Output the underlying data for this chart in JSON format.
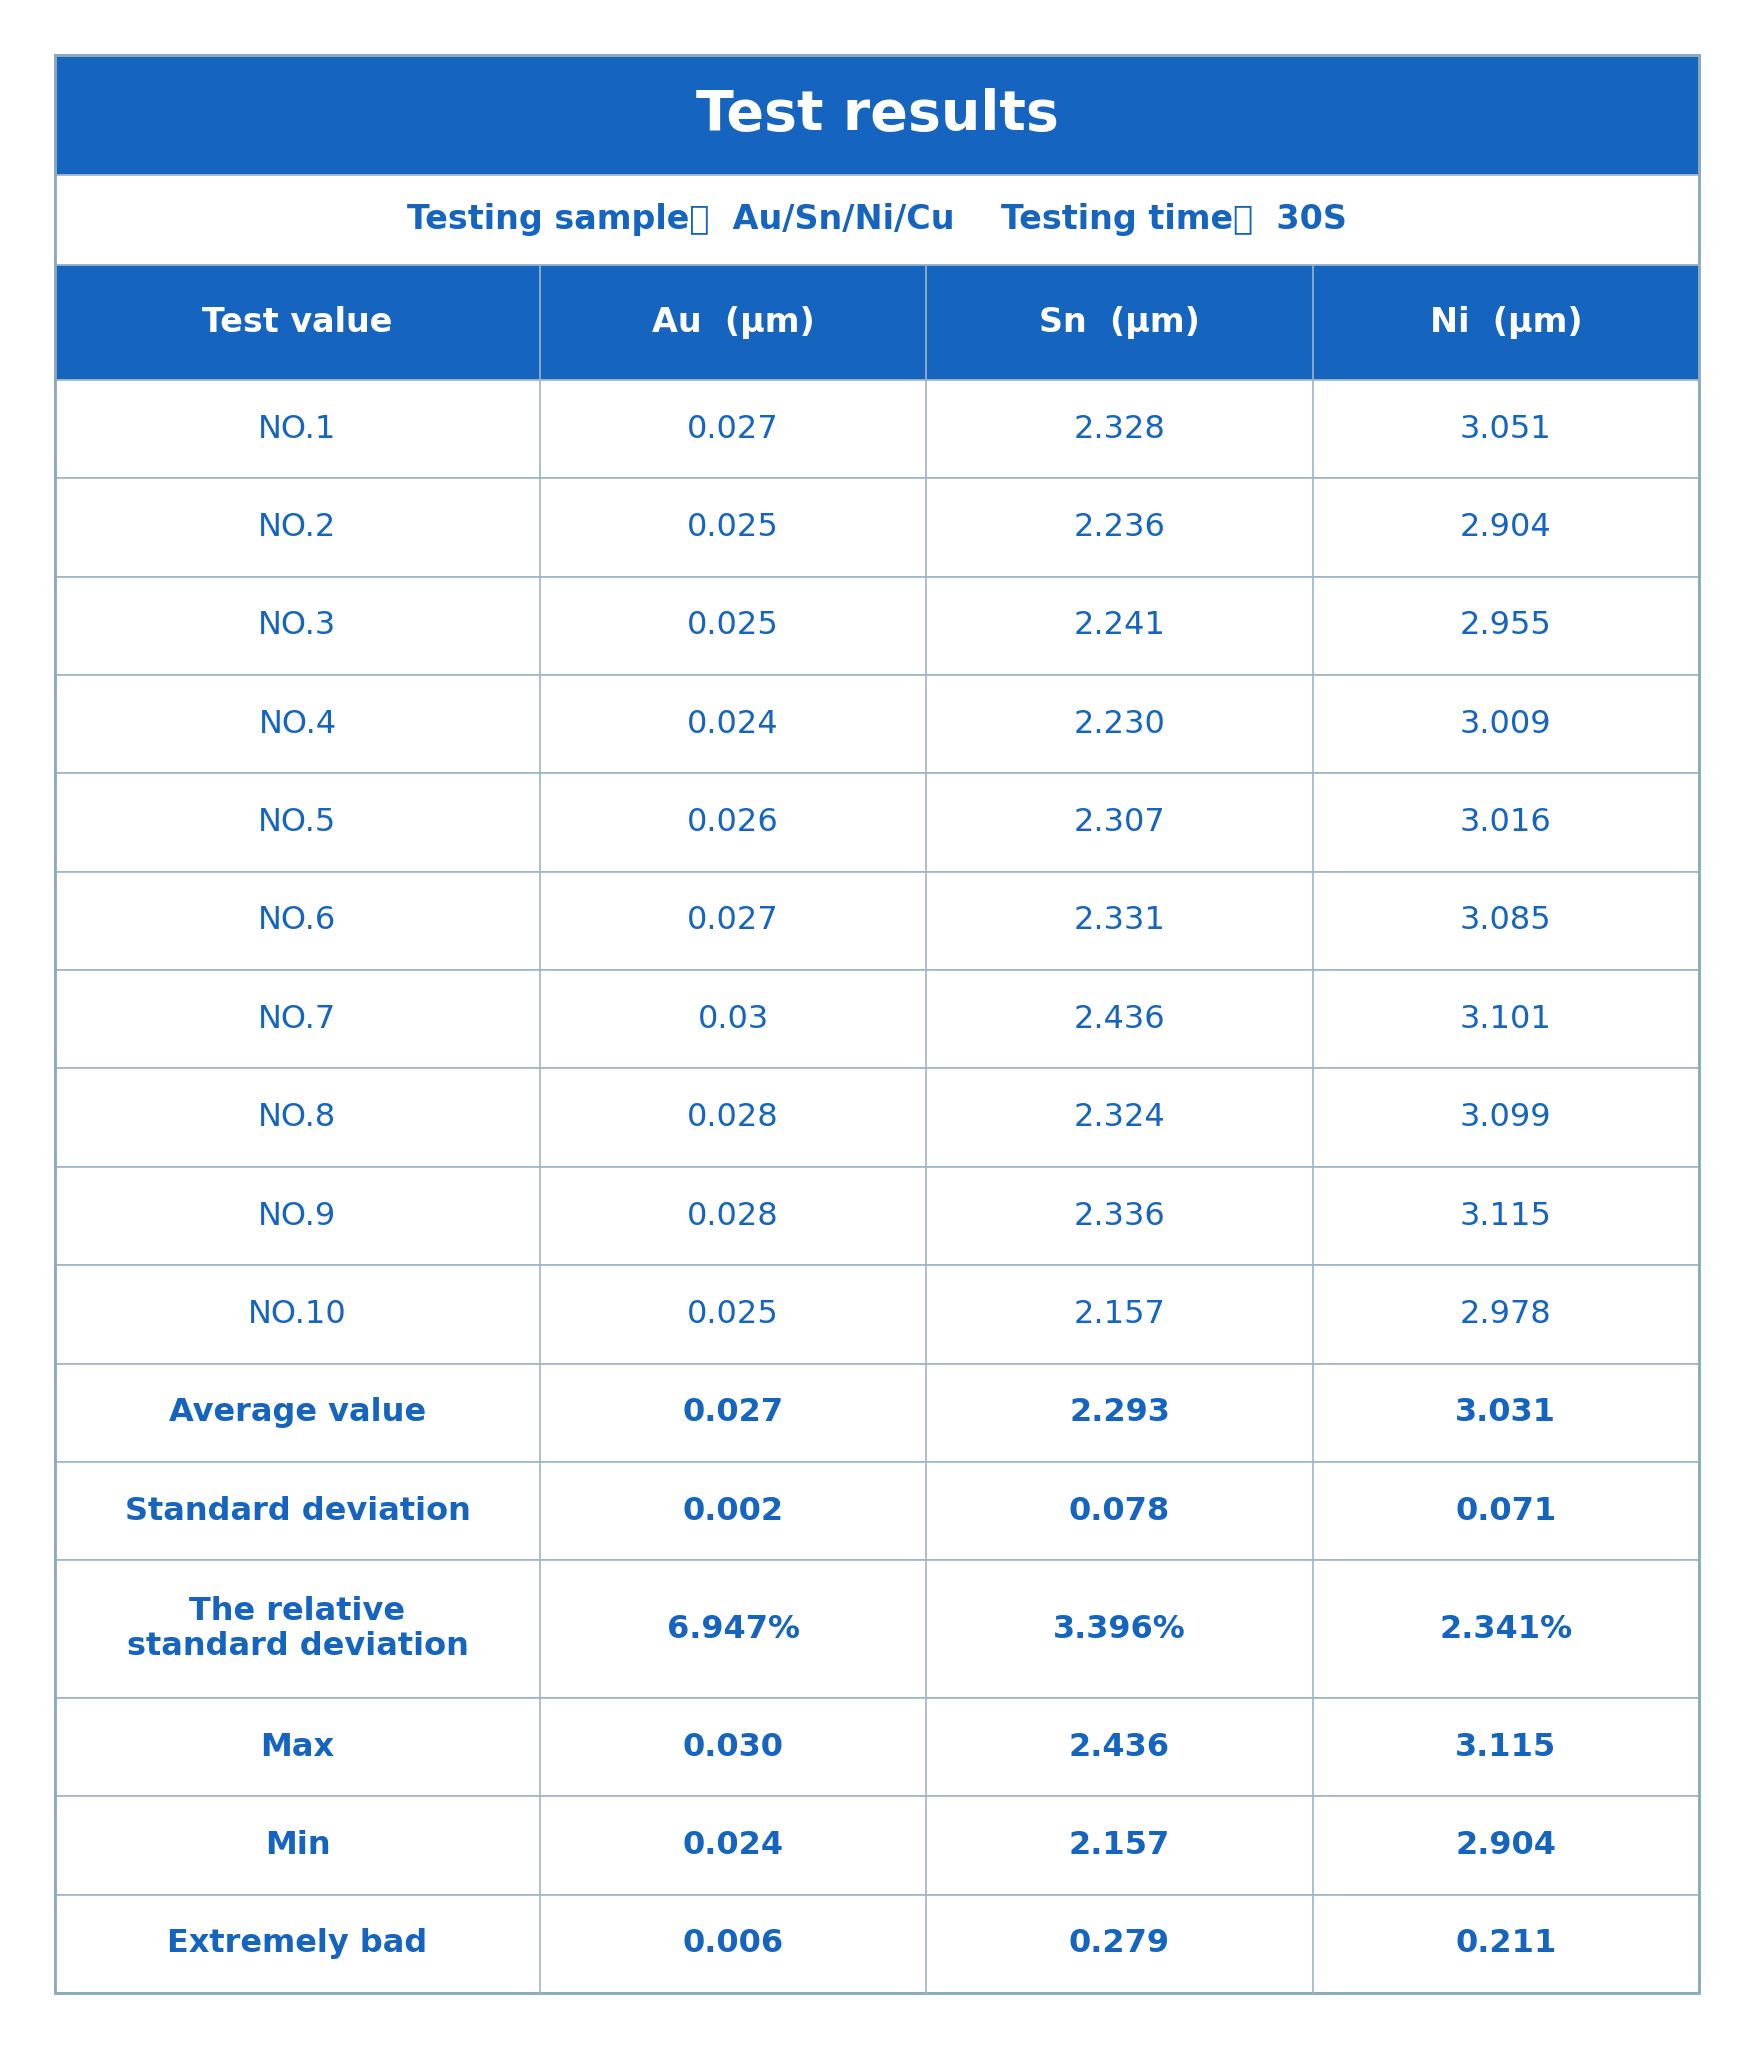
{
  "title": "Test results",
  "subtitle": "Testing sample：  Au/Sn/Ni/Cu    Testing time：  30S",
  "header_bg": "#1565C0",
  "header_text_color": "#FFFFFF",
  "subheader_bg": "#FFFFFF",
  "subheader_text_color": "#1565C0",
  "col_header_bg": "#1565C0",
  "col_header_text": "#FFFFFF",
  "row_text_color": "#1565C0",
  "grid_color": "#A0B4C8",
  "outer_border_color": "#8AAABB",
  "columns": [
    "Test value",
    "Au  (μm)",
    "Sn  (μm)",
    "Ni  (μm)"
  ],
  "rows": [
    [
      "NO.1",
      "0.027",
      "2.328",
      "3.051"
    ],
    [
      "NO.2",
      "0.025",
      "2.236",
      "2.904"
    ],
    [
      "NO.3",
      "0.025",
      "2.241",
      "2.955"
    ],
    [
      "NO.4",
      "0.024",
      "2.230",
      "3.009"
    ],
    [
      "NO.5",
      "0.026",
      "2.307",
      "3.016"
    ],
    [
      "NO.6",
      "0.027",
      "2.331",
      "3.085"
    ],
    [
      "NO.7",
      "0.03",
      "2.436",
      "3.101"
    ],
    [
      "NO.8",
      "0.028",
      "2.324",
      "3.099"
    ],
    [
      "NO.9",
      "0.028",
      "2.336",
      "3.115"
    ],
    [
      "NO.10",
      "0.025",
      "2.157",
      "2.978"
    ],
    [
      "Average value",
      "0.027",
      "2.293",
      "3.031"
    ],
    [
      "Standard deviation",
      "0.002",
      "0.078",
      "0.071"
    ],
    [
      "The relative\nstandard deviation",
      "6.947%",
      "3.396%",
      "2.341%"
    ],
    [
      "Max",
      "0.030",
      "2.436",
      "3.115"
    ],
    [
      "Min",
      "0.024",
      "2.157",
      "2.904"
    ],
    [
      "Extremely bad",
      "0.006",
      "0.279",
      "0.211"
    ]
  ],
  "bold_rows": [
    10,
    11,
    12,
    13,
    14,
    15
  ],
  "title_fontsize": 40,
  "subtitle_fontsize": 24,
  "col_header_fontsize": 24,
  "row_fontsize": 23,
  "bold_row_fontsize": 23
}
